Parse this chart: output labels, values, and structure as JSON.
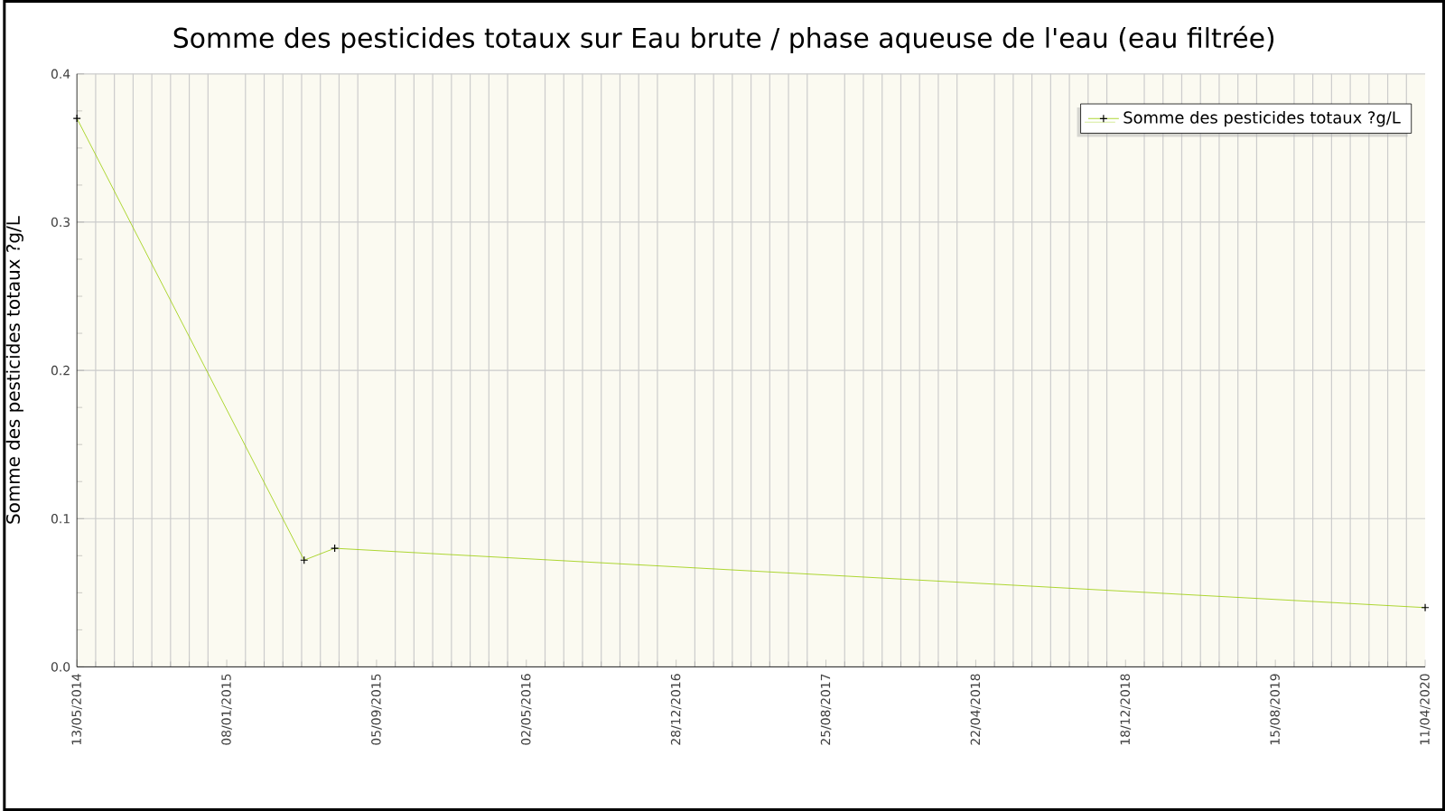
{
  "chart_data": {
    "type": "line",
    "title": "Somme des pesticides totaux sur Eau brute / phase aqueuse de l'eau (eau filtrée)",
    "ylabel": "Somme des pesticides totaux ?g/L",
    "x": [
      "2014-05-13",
      "2015-05-12",
      "2015-06-30",
      "2020-04-11"
    ],
    "series": [
      {
        "name": "Somme des pesticides totaux ?g/L",
        "color": "#99cc00",
        "values": [
          0.37,
          0.072,
          0.08,
          0.04
        ]
      }
    ],
    "xlim": [
      "2014-05-13",
      "2020-04-11"
    ],
    "xticks": [
      {
        "value": "2014-05-13",
        "label": "13/05/2014"
      },
      {
        "value": "2015-01-08",
        "label": "08/01/2015"
      },
      {
        "value": "2015-09-05",
        "label": "05/09/2015"
      },
      {
        "value": "2016-05-02",
        "label": "02/05/2016"
      },
      {
        "value": "2016-12-28",
        "label": "28/12/2016"
      },
      {
        "value": "2017-08-25",
        "label": "25/08/2017"
      },
      {
        "value": "2018-04-22",
        "label": "22/04/2018"
      },
      {
        "value": "2018-12-18",
        "label": "18/12/2018"
      },
      {
        "value": "2019-08-15",
        "label": "15/08/2019"
      },
      {
        "value": "2020-04-11",
        "label": "11/04/2020"
      }
    ],
    "ylim": [
      0,
      0.4
    ],
    "yticks": [
      {
        "value": 0,
        "label": "0.0"
      },
      {
        "value": 0.1,
        "label": "0.1"
      },
      {
        "value": 0.2,
        "label": "0.2"
      },
      {
        "value": 0.3,
        "label": "0.3"
      },
      {
        "value": 0.4,
        "label": "0.4"
      }
    ],
    "grid": true,
    "legend": "top right",
    "marker": "cross",
    "line_style": "solid"
  }
}
